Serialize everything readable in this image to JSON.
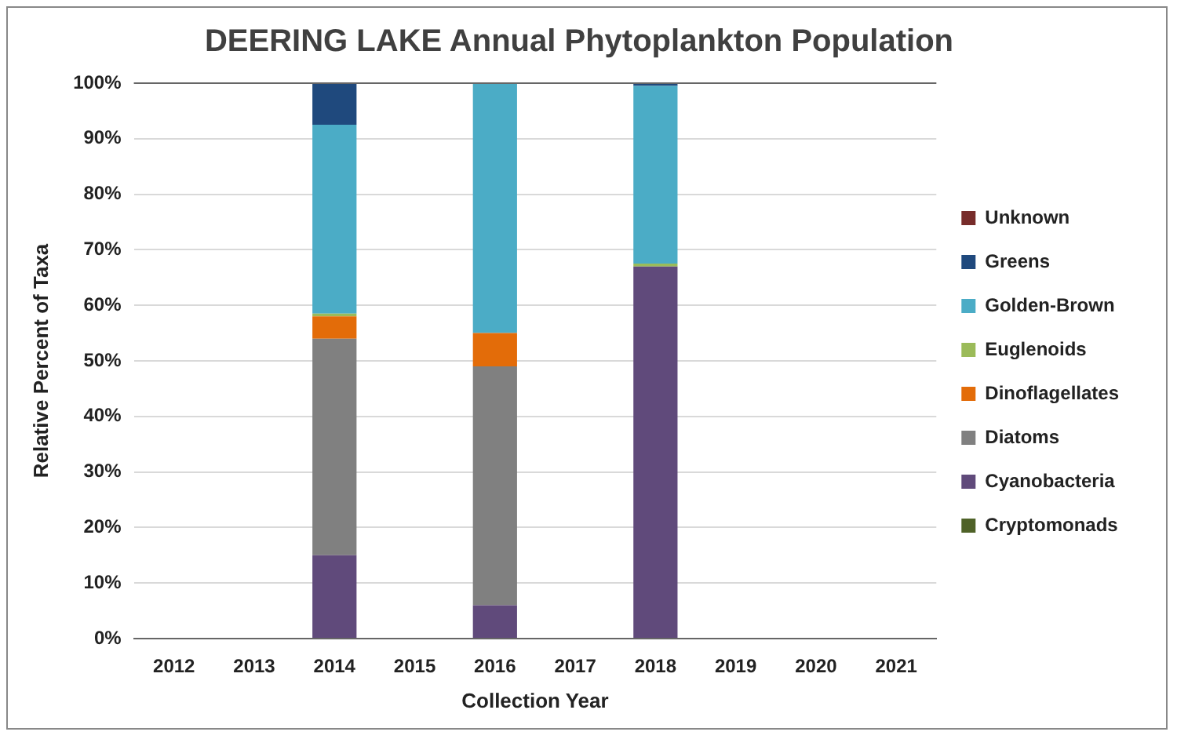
{
  "chart_data": {
    "type": "bar",
    "stacked": true,
    "title": "DEERING LAKE Annual Phytoplankton Population",
    "xlabel": "Collection Year",
    "ylabel": "Relative Percent of Taxa",
    "categories": [
      "2012",
      "2013",
      "2014",
      "2015",
      "2016",
      "2017",
      "2018",
      "2019",
      "2020",
      "2021"
    ],
    "series": [
      {
        "name": "Cryptomonads",
        "color": "#4f6228",
        "values": [
          null,
          null,
          0,
          null,
          0,
          null,
          0,
          null,
          null,
          null
        ]
      },
      {
        "name": "Cyanobacteria",
        "color": "#604a7b",
        "values": [
          null,
          null,
          15,
          null,
          6,
          null,
          67,
          null,
          null,
          null
        ]
      },
      {
        "name": "Diatoms",
        "color": "#808080",
        "values": [
          null,
          null,
          39,
          null,
          43,
          null,
          0,
          null,
          null,
          null
        ]
      },
      {
        "name": "Dinoflagellates",
        "color": "#e36c09",
        "values": [
          null,
          null,
          4,
          null,
          6,
          null,
          0,
          null,
          null,
          null
        ]
      },
      {
        "name": "Euglenoids",
        "color": "#9bbb59",
        "values": [
          null,
          null,
          0.5,
          null,
          0,
          null,
          0.5,
          null,
          null,
          null
        ]
      },
      {
        "name": "Golden-Brown",
        "color": "#4bacc6",
        "values": [
          null,
          null,
          34,
          null,
          45,
          null,
          32,
          null,
          null,
          null
        ]
      },
      {
        "name": "Greens",
        "color": "#1f497d",
        "values": [
          null,
          null,
          7.5,
          null,
          0,
          null,
          0.5,
          null,
          null,
          null
        ]
      },
      {
        "name": "Unknown",
        "color": "#772c2a",
        "values": [
          null,
          null,
          0,
          null,
          0,
          null,
          0,
          null,
          null,
          null
        ]
      }
    ],
    "ylim": [
      0,
      100
    ],
    "yticks": [
      {
        "value": 0,
        "label": "0%"
      },
      {
        "value": 10,
        "label": "10%"
      },
      {
        "value": 20,
        "label": "20%"
      },
      {
        "value": 30,
        "label": "30%"
      },
      {
        "value": 40,
        "label": "40%"
      },
      {
        "value": 50,
        "label": "50%"
      },
      {
        "value": 60,
        "label": "60%"
      },
      {
        "value": 70,
        "label": "70%"
      },
      {
        "value": 80,
        "label": "80%"
      },
      {
        "value": 90,
        "label": "90%"
      },
      {
        "value": 100,
        "label": "100%"
      }
    ],
    "grid": "y",
    "legend": "right"
  }
}
